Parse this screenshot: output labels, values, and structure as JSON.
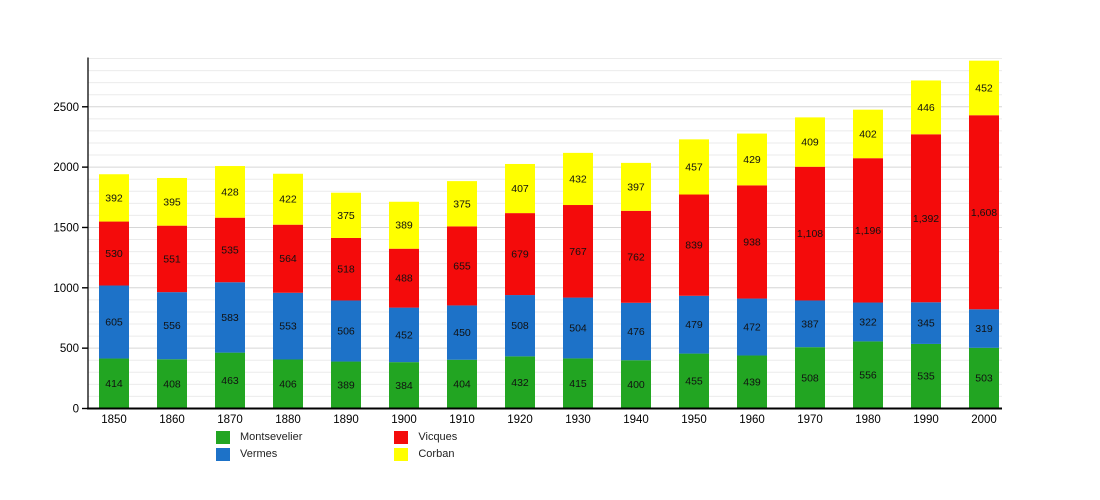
{
  "chart_data": {
    "type": "bar",
    "stacked": true,
    "title": "",
    "xlabel": "",
    "ylabel": "",
    "categories": [
      "1850",
      "1860",
      "1870",
      "1880",
      "1890",
      "1900",
      "1910",
      "1920",
      "1930",
      "1940",
      "1950",
      "1960",
      "1970",
      "1980",
      "1990",
      "2000"
    ],
    "series": [
      {
        "name": "Montsevelier",
        "color": "#22a522",
        "values": [
          414,
          408,
          463,
          406,
          389,
          384,
          404,
          432,
          415,
          400,
          455,
          439,
          508,
          556,
          535,
          503
        ]
      },
      {
        "name": "Vermes",
        "color": "#1d72c8",
        "values": [
          605,
          556,
          583,
          553,
          506,
          452,
          450,
          508,
          504,
          476,
          479,
          472,
          387,
          322,
          345,
          319
        ]
      },
      {
        "name": "Vicques",
        "color": "#f40b0b",
        "values": [
          530,
          551,
          535,
          564,
          518,
          488,
          655,
          679,
          767,
          762,
          839,
          938,
          1108,
          1196,
          1392,
          1608
        ]
      },
      {
        "name": "Corban",
        "color": "#ffff00",
        "values": [
          392,
          395,
          428,
          422,
          375,
          389,
          375,
          407,
          432,
          397,
          457,
          429,
          409,
          402,
          446,
          452
        ]
      }
    ],
    "ylim": [
      0,
      2900
    ],
    "y_major_tick_labels": [
      "0",
      "500",
      "1000",
      "1500",
      "2000",
      "2500"
    ],
    "y_major_tick_values": [
      0,
      500,
      1000,
      1500,
      2000,
      2500
    ],
    "minor_grid_step": 100,
    "grid": "horizontal",
    "legend_position": "bottom",
    "legend_columns": [
      [
        0,
        1
      ],
      [
        2,
        3
      ]
    ],
    "value_labels": "inside-segments",
    "colors": {
      "grid_minor": "#ebebeb",
      "grid_major": "#d6d6d6",
      "axis_x": "#000000",
      "axis_y": "#1a1a1a",
      "label_text": "#111111",
      "tick_text": "#000000"
    }
  }
}
